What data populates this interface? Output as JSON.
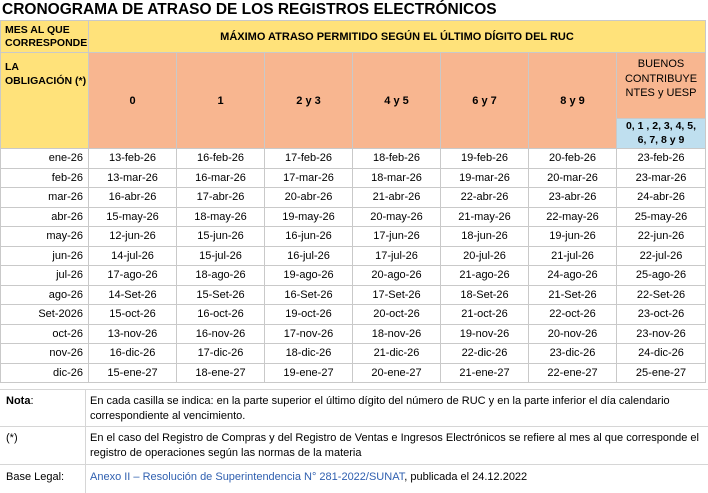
{
  "title": "CRONOGRAMA DE ATRASO DE LOS REGISTROS ELECTRÓNICOS",
  "header": {
    "mes_line1": "MES AL QUE",
    "mes_line2": "CORRESPONDE",
    "obligacion_line1": "LA",
    "obligacion_line2": "OBLIGACIÓN (*)",
    "main": "MÁXIMO ATRASO PERMITIDO SEGÚN EL ÚLTIMO DÍGITO DEL RUC",
    "digits": [
      "0",
      "1",
      "2 y 3",
      "4 y 5",
      "6 y 7",
      "8 y 9"
    ],
    "buenos_line1": "BUENOS",
    "buenos_line2": "CONTRIBUYE",
    "buenos_line3": "NTES y UESP",
    "buenos_digits_line1": "0, 1 , 2, 3, 4, 5,",
    "buenos_digits_line2": "6, 7, 8 y 9"
  },
  "rows": [
    {
      "mes": "ene-26",
      "vals": [
        "13-feb-26",
        "16-feb-26",
        "17-feb-26",
        "18-feb-26",
        "19-feb-26",
        "20-feb-26",
        "23-feb-26"
      ]
    },
    {
      "mes": "feb-26",
      "vals": [
        "13-mar-26",
        "16-mar-26",
        "17-mar-26",
        "18-mar-26",
        "19-mar-26",
        "20-mar-26",
        "23-mar-26"
      ]
    },
    {
      "mes": "mar-26",
      "vals": [
        "16-abr-26",
        "17-abr-26",
        "20-abr-26",
        "21-abr-26",
        "22-abr-26",
        "23-abr-26",
        "24-abr-26"
      ]
    },
    {
      "mes": "abr-26",
      "vals": [
        "15-may-26",
        "18-may-26",
        "19-may-26",
        "20-may-26",
        "21-may-26",
        "22-may-26",
        "25-may-26"
      ]
    },
    {
      "mes": "may-26",
      "vals": [
        "12-jun-26",
        "15-jun-26",
        "16-jun-26",
        "17-jun-26",
        "18-jun-26",
        "19-jun-26",
        "22-jun-26"
      ]
    },
    {
      "mes": "jun-26",
      "vals": [
        "14-jul-26",
        "15-jul-26",
        "16-jul-26",
        "17-jul-26",
        "20-jul-26",
        "21-jul-26",
        "22-jul-26"
      ]
    },
    {
      "mes": "jul-26",
      "vals": [
        "17-ago-26",
        "18-ago-26",
        "19-ago-26",
        "20-ago-26",
        "21-ago-26",
        "24-ago-26",
        "25-ago-26"
      ]
    },
    {
      "mes": "ago-26",
      "vals": [
        "14-Set-26",
        "15-Set-26",
        "16-Set-26",
        "17-Set-26",
        "18-Set-26",
        "21-Set-26",
        "22-Set-26"
      ]
    },
    {
      "mes": "Set-2026",
      "vals": [
        "15-oct-26",
        "16-oct-26",
        "19-oct-26",
        "20-oct-26",
        "21-oct-26",
        "22-oct-26",
        "23-oct-26"
      ]
    },
    {
      "mes": "oct-26",
      "vals": [
        "13-nov-26",
        "16-nov-26",
        "17-nov-26",
        "18-nov-26",
        "19-nov-26",
        "20-nov-26",
        "23-nov-26"
      ]
    },
    {
      "mes": "nov-26",
      "vals": [
        "16-dic-26",
        "17-dic-26",
        "18-dic-26",
        "21-dic-26",
        "22-dic-26",
        "23-dic-26",
        "24-dic-26"
      ]
    },
    {
      "mes": "dic-26",
      "vals": [
        "15-ene-27",
        "18-ene-27",
        "19-ene-27",
        "20-ene-27",
        "21-ene-27",
        "22-ene-27",
        "25-ene-27"
      ]
    }
  ],
  "notes": {
    "nota_label": "Nota",
    "nota_colon": ":",
    "nota_text": "En cada casilla se indica: en la parte superior el último dígito del número de RUC y en la parte inferior el día calendario correspondiente al vencimiento.",
    "ast_label": "(*)",
    "ast_text": "En el caso del Registro de Compras y del Registro de Ventas e Ingresos Electrónicos se refiere al mes al que corresponde el registro de operaciones según las normas de la materia",
    "base_label": "Base Legal:",
    "base_link": "Anexo II – Resolución de Superintendencia N° 281-2022/SUNAT",
    "base_suffix": ", publicada el 24.12.2022"
  },
  "colors": {
    "yellow": "#ffe27a",
    "salmon": "#f8b690",
    "blue": "#bfdfef",
    "grid": "#c9c9c9",
    "link": "#3060b0"
  }
}
